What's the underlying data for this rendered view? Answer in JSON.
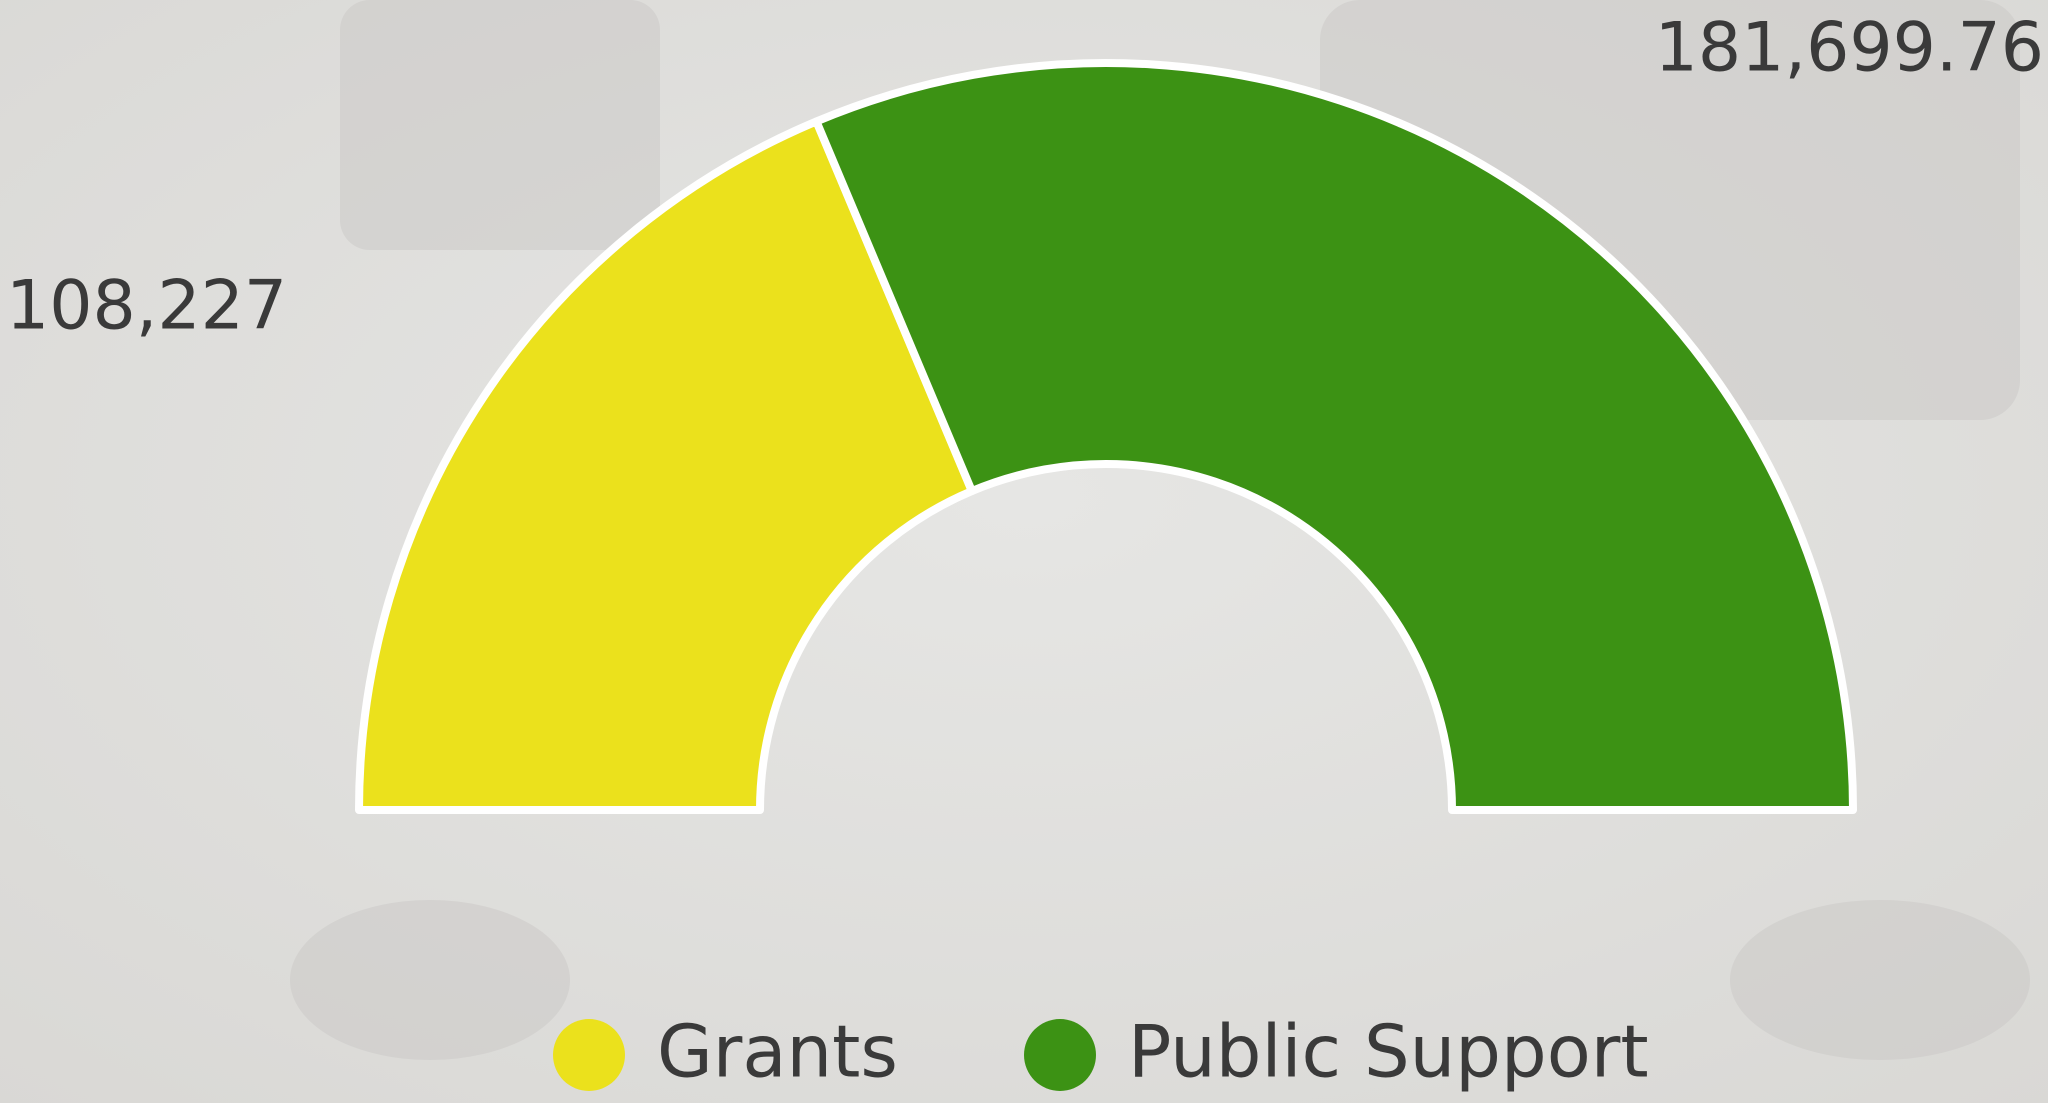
{
  "chart_data": {
    "type": "semi-donut",
    "categories": [
      "Grants",
      "Public Support"
    ],
    "values": [
      108227,
      181699.76
    ],
    "value_labels": [
      "108,227",
      "181,699.76"
    ],
    "colors": [
      "#ebe11c",
      "#3c9214"
    ],
    "legend": "bottom"
  }
}
